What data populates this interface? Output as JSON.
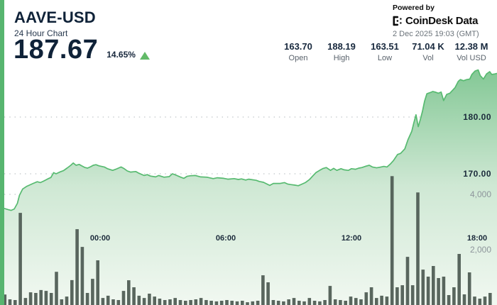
{
  "header": {
    "symbol": "AAVE-USD",
    "subtitle": "24 Hour Chart",
    "price": "187.67",
    "change_percent": "14.65%",
    "change_direction": "up",
    "powered_by": "Powered by",
    "brand_left": "CoinDesk",
    "brand_right": "Data",
    "timestamp": "2 Dec 2025 19:03 (GMT)"
  },
  "stats": [
    {
      "value": "163.70",
      "label": "Open"
    },
    {
      "value": "188.19",
      "label": "High"
    },
    {
      "value": "163.51",
      "label": "Low"
    },
    {
      "value": "71.04 K",
      "label": "Vol"
    },
    {
      "value": "12.38 M",
      "label": "Vol USD"
    }
  ],
  "colors": {
    "accent_green": "#57b56f",
    "line_green": "#57ba70",
    "fill_green_top": "#82c794",
    "fill_green_bottom": "#f1f8f1",
    "volume_bar": "#4e5a53",
    "text_dark": "#0f2238",
    "text_gray": "#6b737a",
    "up_arrow": "#62ba68"
  },
  "chart_data": {
    "type": "area",
    "title": "AAVE-USD 24 Hour Chart with volume",
    "price_axis": {
      "ticks": [
        {
          "value": 180,
          "label": "180.00"
        },
        {
          "value": 170,
          "label": "170.00"
        }
      ]
    },
    "volume_axis": {
      "ticks": [
        {
          "value": 4000,
          "label": "4,000"
        },
        {
          "value": 2000,
          "label": "2,000"
        }
      ]
    },
    "x_axis": {
      "ticks": [
        {
          "t": 0,
          "label": "00:00"
        },
        {
          "t": 6,
          "label": "06:00"
        },
        {
          "t": 12,
          "label": "12:00"
        },
        {
          "t": 18,
          "label": "18:00"
        }
      ]
    },
    "price_series": [
      [
        -4.58,
        163.9
      ],
      [
        -4.4,
        163.7
      ],
      [
        -4.25,
        163.55
      ],
      [
        -4.1,
        163.8
      ],
      [
        -3.95,
        164.8
      ],
      [
        -3.85,
        166.2
      ],
      [
        -3.7,
        167.3
      ],
      [
        -3.5,
        167.8
      ],
      [
        -3.2,
        168.3
      ],
      [
        -3.0,
        168.6
      ],
      [
        -2.85,
        168.45
      ],
      [
        -2.7,
        168.7
      ],
      [
        -2.5,
        169.1
      ],
      [
        -2.35,
        169.35
      ],
      [
        -2.22,
        170.2
      ],
      [
        -2.1,
        170.0
      ],
      [
        -1.9,
        170.35
      ],
      [
        -1.75,
        170.55
      ],
      [
        -1.58,
        171.0
      ],
      [
        -1.4,
        171.5
      ],
      [
        -1.28,
        171.9
      ],
      [
        -1.15,
        171.5
      ],
      [
        -1.0,
        171.65
      ],
      [
        -0.88,
        171.4
      ],
      [
        -0.72,
        171.1
      ],
      [
        -0.6,
        171.0
      ],
      [
        -0.45,
        171.25
      ],
      [
        -0.33,
        171.5
      ],
      [
        -0.2,
        171.6
      ],
      [
        -0.05,
        171.4
      ],
      [
        0.2,
        171.2
      ],
      [
        0.35,
        170.9
      ],
      [
        0.6,
        170.6
      ],
      [
        0.75,
        170.8
      ],
      [
        1.0,
        171.2
      ],
      [
        1.15,
        170.9
      ],
      [
        1.3,
        170.5
      ],
      [
        1.45,
        170.3
      ],
      [
        1.7,
        170.4
      ],
      [
        1.85,
        170.1
      ],
      [
        2.1,
        169.7
      ],
      [
        2.25,
        169.85
      ],
      [
        2.4,
        169.6
      ],
      [
        2.65,
        169.45
      ],
      [
        2.8,
        169.7
      ],
      [
        3.05,
        169.4
      ],
      [
        3.3,
        169.5
      ],
      [
        3.45,
        170.0
      ],
      [
        3.6,
        169.8
      ],
      [
        3.85,
        169.4
      ],
      [
        4.0,
        169.2
      ],
      [
        4.15,
        169.55
      ],
      [
        4.3,
        169.65
      ],
      [
        4.55,
        169.7
      ],
      [
        4.8,
        169.45
      ],
      [
        5.1,
        169.4
      ],
      [
        5.4,
        169.15
      ],
      [
        5.6,
        169.3
      ],
      [
        5.9,
        169.2
      ],
      [
        6.1,
        169.05
      ],
      [
        6.4,
        169.15
      ],
      [
        6.6,
        169.0
      ],
      [
        6.75,
        169.1
      ],
      [
        6.95,
        168.9
      ],
      [
        7.1,
        169.05
      ],
      [
        7.45,
        168.85
      ],
      [
        7.6,
        168.65
      ],
      [
        7.8,
        168.5
      ],
      [
        8.1,
        167.95
      ],
      [
        8.27,
        168.3
      ],
      [
        8.6,
        168.3
      ],
      [
        8.8,
        168.45
      ],
      [
        8.95,
        168.2
      ],
      [
        9.1,
        168.1
      ],
      [
        9.3,
        168.0
      ],
      [
        9.46,
        167.9
      ],
      [
        9.65,
        168.2
      ],
      [
        9.8,
        168.45
      ],
      [
        10.0,
        169.0
      ],
      [
        10.15,
        169.6
      ],
      [
        10.3,
        170.2
      ],
      [
        10.5,
        170.65
      ],
      [
        10.65,
        170.95
      ],
      [
        10.8,
        171.1
      ],
      [
        11.0,
        170.6
      ],
      [
        11.15,
        170.95
      ],
      [
        11.3,
        170.6
      ],
      [
        11.5,
        170.9
      ],
      [
        11.65,
        170.7
      ],
      [
        11.85,
        170.6
      ],
      [
        12.0,
        170.9
      ],
      [
        12.2,
        170.8
      ],
      [
        12.35,
        171.0
      ],
      [
        12.5,
        171.1
      ],
      [
        12.7,
        171.35
      ],
      [
        12.85,
        171.5
      ],
      [
        13.0,
        171.2
      ],
      [
        13.2,
        171.05
      ],
      [
        13.35,
        171.15
      ],
      [
        13.55,
        171.3
      ],
      [
        13.7,
        171.2
      ],
      [
        13.85,
        171.7
      ],
      [
        14.0,
        172.3
      ],
      [
        14.2,
        173.4
      ],
      [
        14.35,
        173.6
      ],
      [
        14.55,
        174.4
      ],
      [
        14.7,
        176.0
      ],
      [
        14.88,
        177.5
      ],
      [
        14.98,
        179.0
      ],
      [
        15.08,
        180.4
      ],
      [
        15.19,
        178.3
      ],
      [
        15.29,
        179.6
      ],
      [
        15.39,
        181.0
      ],
      [
        15.49,
        182.8
      ],
      [
        15.6,
        184.1
      ],
      [
        15.75,
        184.3
      ],
      [
        15.88,
        184.5
      ],
      [
        16.0,
        184.4
      ],
      [
        16.15,
        184.2
      ],
      [
        16.28,
        184.4
      ],
      [
        16.4,
        182.9
      ],
      [
        16.55,
        184.0
      ],
      [
        16.7,
        184.2
      ],
      [
        16.8,
        184.6
      ],
      [
        16.95,
        185.2
      ],
      [
        17.1,
        186.3
      ],
      [
        17.2,
        186.6
      ],
      [
        17.35,
        186.4
      ],
      [
        17.5,
        186.6
      ],
      [
        17.65,
        186.7
      ],
      [
        17.75,
        187.5
      ],
      [
        17.9,
        188.1
      ],
      [
        18.05,
        188.3
      ],
      [
        18.15,
        187.3
      ],
      [
        18.3,
        186.7
      ],
      [
        18.45,
        187.6
      ],
      [
        18.6,
        188.0
      ],
      [
        18.7,
        187.5
      ],
      [
        18.85,
        187.6
      ],
      [
        18.95,
        187.7
      ]
    ],
    "volume_series": {
      "t_start": -4.55,
      "t_step": 0.2465,
      "values": [
        380,
        205,
        180,
        3330,
        255,
        460,
        435,
        540,
        510,
        435,
        1200,
        205,
        305,
        900,
        2740,
        2100,
        435,
        945,
        1615,
        255,
        335,
        205,
        180,
        510,
        895,
        640,
        335,
        255,
        410,
        305,
        230,
        180,
        205,
        255,
        180,
        155,
        180,
        205,
        255,
        180,
        155,
        130,
        155,
        180,
        155,
        130,
        155,
        100,
        130,
        155,
        1075,
        820,
        180,
        155,
        130,
        205,
        255,
        155,
        130,
        255,
        155,
        130,
        180,
        690,
        205,
        180,
        155,
        305,
        255,
        205,
        460,
        640,
        255,
        335,
        305,
        4660,
        640,
        715,
        1740,
        715,
        4070,
        1280,
        1025,
        1410,
        975,
        1025,
        360,
        640,
        1845,
        385,
        1180,
        305,
        230,
        305,
        435
      ]
    }
  }
}
